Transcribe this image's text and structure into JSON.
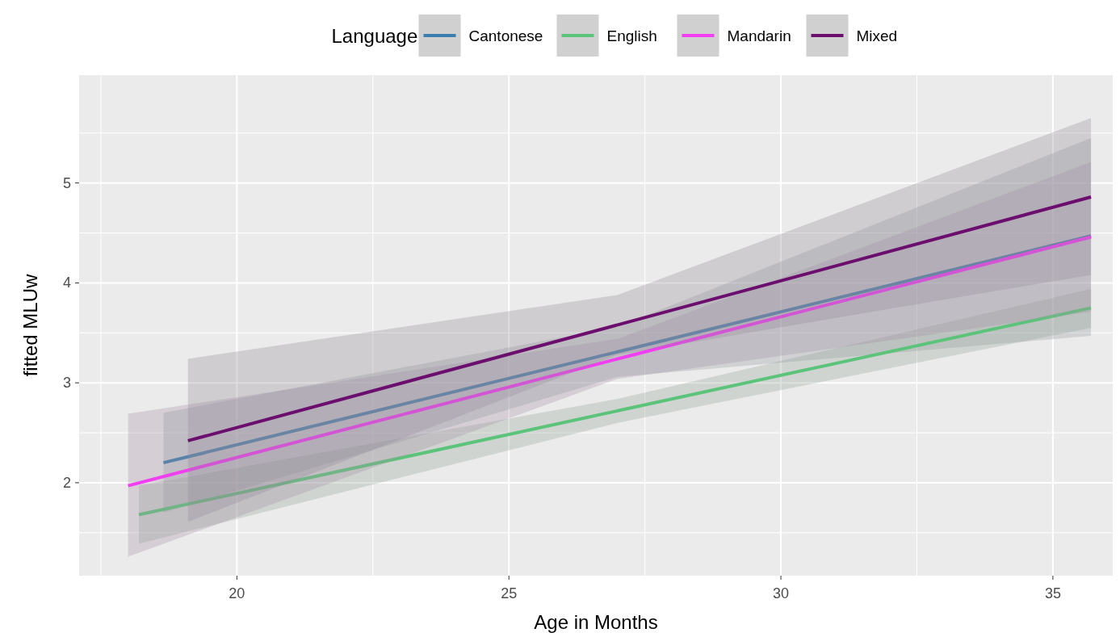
{
  "chart_data": {
    "type": "line",
    "xlabel": "Age in Months",
    "ylabel": "fitted MLUw",
    "legend_title": "Language",
    "legend": "top",
    "grid": true,
    "xlim": [
      17.1,
      36.1
    ],
    "xticks": [
      20,
      25,
      30,
      35
    ],
    "ylim": [
      1.07,
      6.08
    ],
    "yticks": [
      2,
      3,
      4,
      5
    ],
    "series": [
      {
        "name": "Cantonese",
        "color": "#3b7fae",
        "x": [
          18.65,
          27,
          35.7
        ],
        "values": [
          2.2,
          3.31,
          4.47
        ],
        "lower": [
          1.7,
          3.06,
          3.47
        ],
        "upper": [
          2.7,
          3.56,
          5.45
        ]
      },
      {
        "name": "English",
        "color": "#5cc47a",
        "x": [
          18.2,
          27,
          35.7
        ],
        "values": [
          1.68,
          2.72,
          3.75
        ],
        "lower": [
          1.39,
          2.6,
          3.55
        ],
        "upper": [
          1.97,
          2.84,
          3.94
        ]
      },
      {
        "name": "Mandarin",
        "color": "#f03ef0",
        "x": [
          18.0,
          27,
          35.7
        ],
        "values": [
          1.97,
          3.24,
          4.46
        ],
        "lower": [
          1.26,
          3.04,
          3.71
        ],
        "upper": [
          2.69,
          3.44,
          5.21
        ]
      },
      {
        "name": "Mixed",
        "color": "#6b0e6e",
        "x": [
          19.1,
          27,
          35.7
        ],
        "values": [
          2.42,
          3.58,
          4.86
        ],
        "lower": [
          1.61,
          3.28,
          4.08
        ],
        "upper": [
          3.24,
          3.88,
          5.65
        ]
      }
    ]
  }
}
